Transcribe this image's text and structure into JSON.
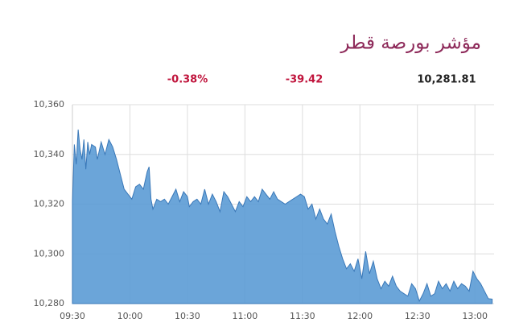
{
  "chart_data": {
    "type": "area",
    "title": "مؤشر بورصة قطر",
    "change_percent": "-0.38%",
    "change": "-39.42",
    "last": "10,281.81",
    "color": "#5b9bd5",
    "grid": true,
    "xlim": [
      "09:30",
      "13:10"
    ],
    "xticks": [
      "09:30",
      "10:00",
      "10:30",
      "11:00",
      "11:30",
      "12:00",
      "12:30",
      "13:00"
    ],
    "ylim": [
      10280,
      10360
    ],
    "yticks": [
      {
        "value": 10280,
        "label": "10,280"
      },
      {
        "value": 10300,
        "label": "10,300"
      },
      {
        "value": 10320,
        "label": "10,320"
      },
      {
        "value": 10340,
        "label": "10,340"
      },
      {
        "value": 10360,
        "label": "10,360"
      }
    ],
    "x": [
      "09:30",
      "09:31",
      "09:32",
      "09:33",
      "09:34",
      "09:35",
      "09:36",
      "09:37",
      "09:38",
      "09:39",
      "09:40",
      "09:42",
      "09:43",
      "09:45",
      "09:47",
      "09:49",
      "09:51",
      "09:53",
      "09:55",
      "09:57",
      "09:59",
      "10:01",
      "10:03",
      "10:05",
      "10:07",
      "10:09",
      "10:10",
      "10:11",
      "10:12",
      "10:14",
      "10:16",
      "10:18",
      "10:20",
      "10:22",
      "10:24",
      "10:26",
      "10:28",
      "10:30",
      "10:31",
      "10:33",
      "10:35",
      "10:37",
      "10:39",
      "10:41",
      "10:43",
      "10:45",
      "10:47",
      "10:49",
      "10:51",
      "10:53",
      "10:55",
      "10:57",
      "10:59",
      "11:01",
      "11:03",
      "11:05",
      "11:07",
      "11:09",
      "11:11",
      "11:13",
      "11:15",
      "11:17",
      "11:19",
      "11:21",
      "11:23",
      "11:25",
      "11:27",
      "11:29",
      "11:31",
      "11:33",
      "11:35",
      "11:37",
      "11:39",
      "11:41",
      "11:43",
      "11:45",
      "11:47",
      "11:49",
      "11:51",
      "11:53",
      "11:55",
      "11:57",
      "11:59",
      "12:01",
      "12:03",
      "12:05",
      "12:07",
      "12:09",
      "12:11",
      "12:13",
      "12:15",
      "12:17",
      "12:19",
      "12:21",
      "12:23",
      "12:25",
      "12:27",
      "12:29",
      "12:31",
      "12:33",
      "12:35",
      "12:37",
      "12:39",
      "12:41",
      "12:43",
      "12:45",
      "12:47",
      "12:49",
      "12:51",
      "12:53",
      "12:55",
      "12:57",
      "12:59",
      "13:01",
      "13:03",
      "13:05",
      "13:07",
      "13:09"
    ],
    "values": [
      10321,
      10344,
      10336,
      10350,
      10342,
      10338,
      10346,
      10334,
      10345,
      10340,
      10344,
      10343,
      10338,
      10345,
      10340,
      10346,
      10343,
      10338,
      10332,
      10326,
      10324,
      10322,
      10327,
      10328,
      10326,
      10333,
      10335,
      10322,
      10318,
      10322,
      10321,
      10322,
      10320,
      10323,
      10326,
      10321,
      10325,
      10323,
      10319,
      10321,
      10322,
      10320,
      10326,
      10320,
      10324,
      10321,
      10317,
      10325,
      10323,
      10320,
      10317,
      10321,
      10319,
      10323,
      10321,
      10323,
      10321,
      10326,
      10324,
      10322,
      10325,
      10322,
      10321,
      10320,
      10321,
      10322,
      10323,
      10324,
      10323,
      10318,
      10320,
      10314,
      10318,
      10314,
      10312,
      10316,
      10309,
      10303,
      10298,
      10294,
      10296,
      10293,
      10298,
      10290,
      10301,
      10292,
      10297,
      10290,
      10286,
      10289,
      10287,
      10291,
      10287,
      10285,
      10284,
      10283,
      10288,
      10286,
      10281,
      10284,
      10288,
      10283,
      10284,
      10289,
      10286,
      10288,
      10285,
      10289,
      10286,
      10288,
      10287,
      10285,
      10293,
      10290,
      10288,
      10285,
      10282,
      10281.81
    ]
  }
}
